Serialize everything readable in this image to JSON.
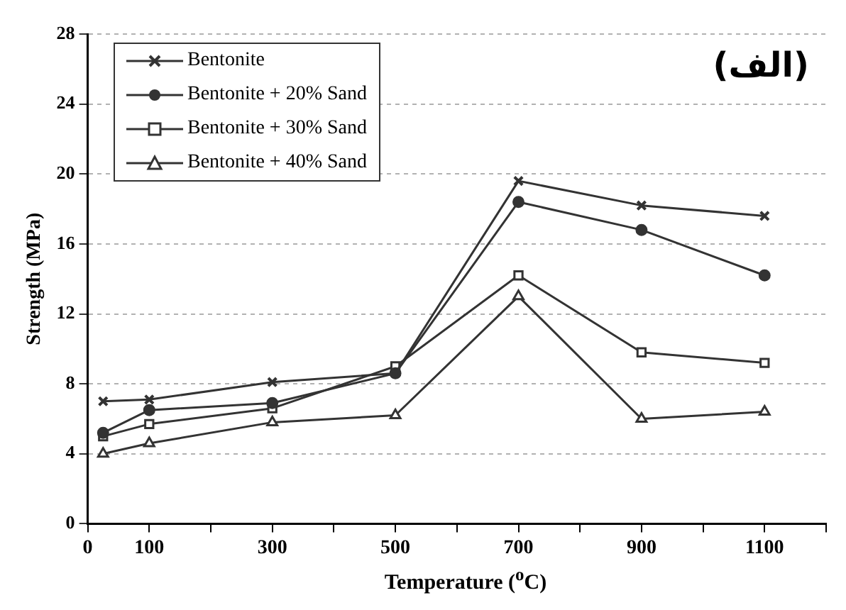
{
  "chart_data": {
    "type": "line",
    "xlabel": "Temperature ($^{o}$C)",
    "ylabel": "Strength (MPa)",
    "annotations": [
      "(الف)"
    ],
    "xlim": [
      0,
      1200
    ],
    "xticks": [
      0,
      100,
      {
        "value": 200,
        "label": null
      },
      300,
      {
        "value": 400,
        "label": null
      },
      500,
      {
        "value": 600,
        "label": null
      },
      700,
      {
        "value": 800,
        "label": null
      },
      900,
      {
        "value": 1000,
        "label": null
      },
      1100,
      {
        "value": 1200,
        "label": null
      }
    ],
    "ylim": [
      0,
      28
    ],
    "yticks": [
      0,
      4,
      8,
      12,
      16,
      20,
      24,
      28
    ],
    "grid": "y",
    "legend": "top left",
    "line_style": "solid",
    "x": [
      25,
      100,
      300,
      500,
      700,
      900,
      1100
    ],
    "series": [
      {
        "name": "Bentonite",
        "color": "#333333",
        "marker": "cross",
        "values": [
          7.0,
          7.1,
          8.1,
          8.6,
          19.6,
          18.2,
          17.6
        ]
      },
      {
        "name": "Bentonite + 20% Sand",
        "color": "#333333",
        "marker": "circle",
        "values": [
          5.2,
          6.5,
          6.9,
          8.6,
          18.4,
          16.8,
          14.2
        ]
      },
      {
        "name": "Bentonite + 30% Sand",
        "color": "#333333",
        "marker": "square",
        "values": [
          5.0,
          5.7,
          6.6,
          9.0,
          14.2,
          9.8,
          9.2
        ]
      },
      {
        "name": "Bentonite + 40% Sand",
        "color": "#333333",
        "marker": "triangle",
        "values": [
          4.0,
          4.6,
          5.8,
          6.2,
          13.0,
          6.0,
          6.4
        ]
      }
    ]
  }
}
